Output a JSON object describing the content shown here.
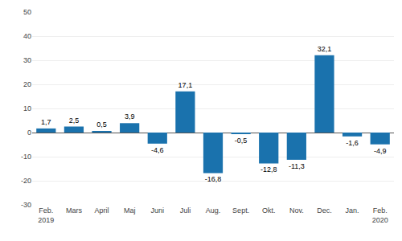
{
  "chart_data": {
    "type": "bar",
    "categories": [
      "Feb.\n2019",
      "Mars",
      "April",
      "Maj",
      "Juni",
      "Juli",
      "Aug.",
      "Sept.",
      "Okt.",
      "Nov.",
      "Dec.",
      "Jan.",
      "Feb.\n2020"
    ],
    "values": [
      1.7,
      2.5,
      0.5,
      3.9,
      -4.6,
      17.1,
      -16.8,
      -0.5,
      -12.8,
      -11.3,
      32.1,
      -1.6,
      -4.9
    ],
    "value_labels": [
      "1,7",
      "2,5",
      "0,5",
      "3,9",
      "-4,6",
      "17,1",
      "-16,8",
      "-0,5",
      "-12,8",
      "-11,3",
      "32,1",
      "-1,6",
      "-4,9"
    ],
    "color": "#1A72AD",
    "ylim": [
      -30,
      50
    ],
    "yticks": [
      -30,
      -20,
      -10,
      0,
      10,
      20,
      30,
      40,
      50
    ],
    "grid": true,
    "data_labels": true
  }
}
